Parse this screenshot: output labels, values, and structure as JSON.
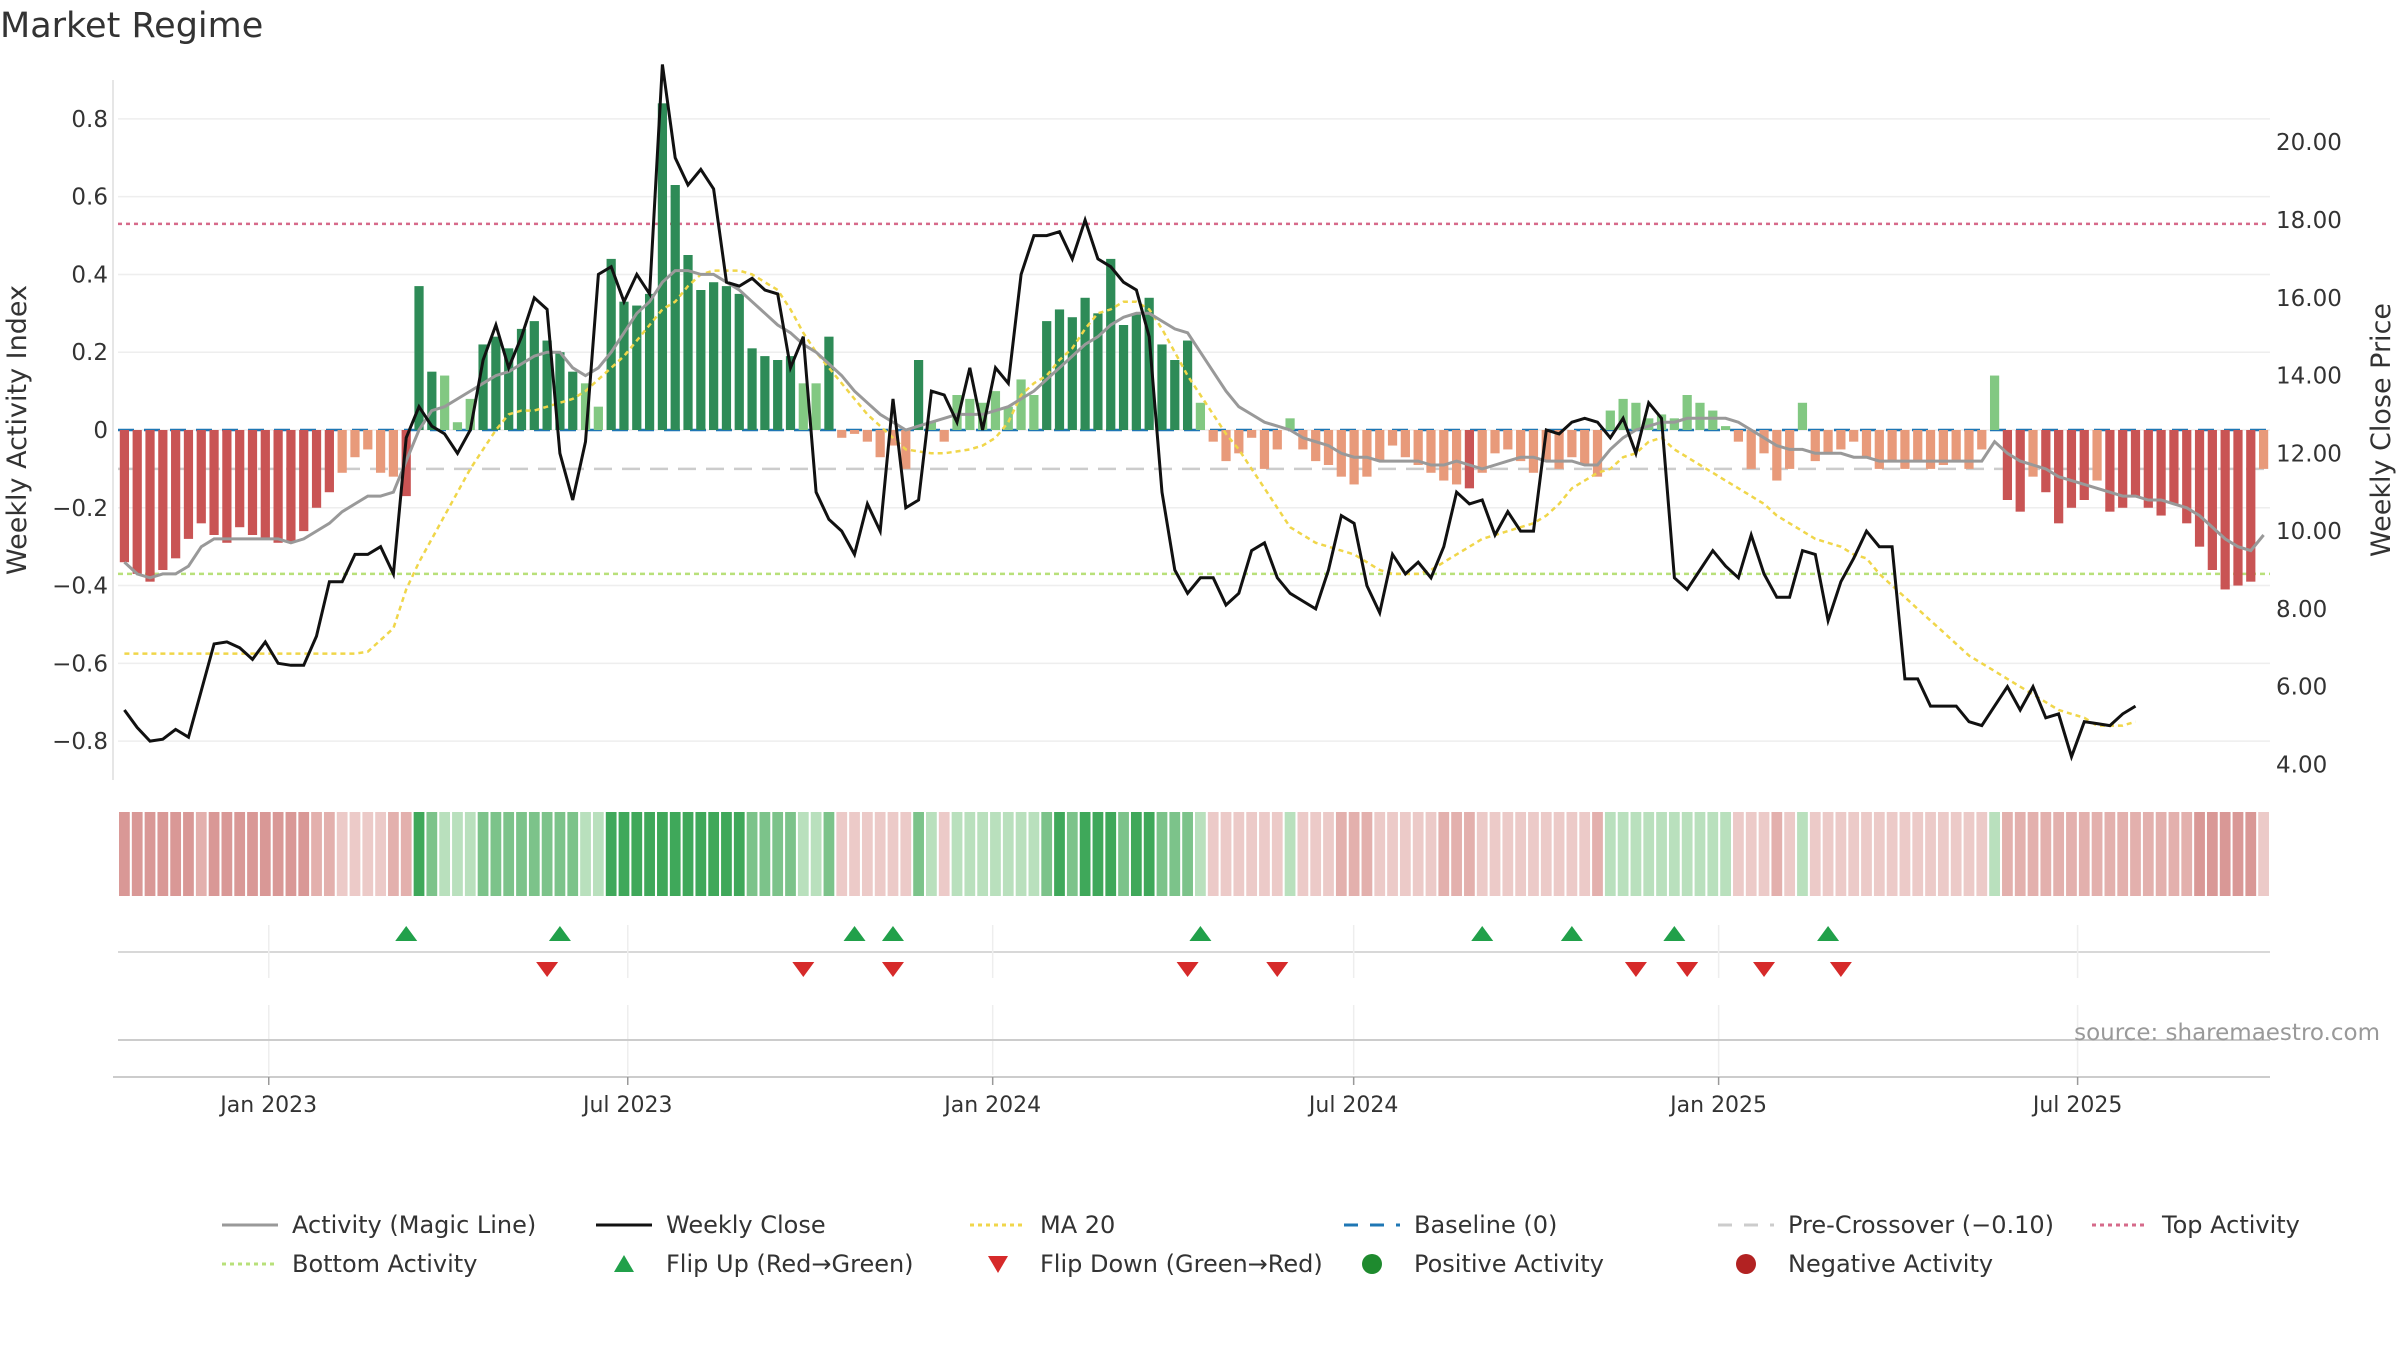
{
  "title": "Market Regime",
  "source": "source: sharemaestro.com",
  "colors": {
    "activity_line": "#999999",
    "close_line": "#111111",
    "ma20": "#f0d64a",
    "baseline": "#1f77b4",
    "pre_crossover": "#cccccc",
    "top_activity": "#d66a8a",
    "bottom_activity": "#b8e07a",
    "flip_up": "#21a04a",
    "flip_down": "#d62a2a",
    "positive": "#1e8a2e",
    "negative": "#b22222",
    "bar_pos_strong": "#2e8b57",
    "bar_pos_light": "#82c882",
    "bar_neg_strong": "#c95454",
    "bar_neg_light": "#e89a7a"
  },
  "chart_data": {
    "type": "bar+line",
    "ylabel_left": "Weekly Activity Index",
    "ylabel_right": "Weekly Close Price",
    "left_ticks": [
      "0.8",
      "0.6",
      "0.4",
      "0.2",
      "0",
      "−0.2",
      "−0.4",
      "−0.6",
      "−0.8"
    ],
    "right_ticks": [
      "20.00",
      "18.00",
      "16.00",
      "14.00",
      "12.00",
      "10.00",
      "8.00",
      "6.00",
      "4.00"
    ],
    "x_ticks": [
      "Jan 2023",
      "Jul 2023",
      "Jan 2024",
      "Jul 2024",
      "Jan 2025",
      "Jul 2025"
    ],
    "ylim_left": [
      -0.9,
      0.9
    ],
    "ylim_right": [
      3.6,
      21.6
    ],
    "x_range": [
      "2022-10-17",
      "2025-10-06"
    ],
    "top_activity": 0.53,
    "bottom_activity": -0.37,
    "pre_crossover": -0.1,
    "baseline": 0,
    "weekly_activity_index": [
      -0.34,
      -0.37,
      -0.39,
      -0.36,
      -0.33,
      -0.28,
      -0.24,
      -0.27,
      -0.29,
      -0.25,
      -0.27,
      -0.28,
      -0.29,
      -0.29,
      -0.26,
      -0.2,
      -0.16,
      -0.11,
      -0.07,
      -0.05,
      -0.11,
      -0.12,
      -0.17,
      0.37,
      0.15,
      0.14,
      0.02,
      0.08,
      0.22,
      0.24,
      0.21,
      0.26,
      0.28,
      0.23,
      0.2,
      0.15,
      0.12,
      0.06,
      0.44,
      0.33,
      0.32,
      0.35,
      0.84,
      0.63,
      0.45,
      0.36,
      0.38,
      0.37,
      0.35,
      0.21,
      0.19,
      0.18,
      0.19,
      0.12,
      0.12,
      0.24,
      -0.02,
      -0.01,
      -0.03,
      -0.07,
      -0.04,
      -0.1,
      0.18,
      0.02,
      -0.03,
      0.09,
      0.08,
      0.07,
      0.1,
      0.06,
      0.13,
      0.09,
      0.28,
      0.31,
      0.29,
      0.34,
      0.3,
      0.44,
      0.27,
      0.3,
      0.34,
      0.22,
      0.18,
      0.23,
      0.07,
      -0.03,
      -0.08,
      -0.06,
      -0.02,
      -0.1,
      -0.05,
      0.03,
      -0.05,
      -0.08,
      -0.09,
      -0.12,
      -0.14,
      -0.12,
      -0.08,
      -0.04,
      -0.07,
      -0.09,
      -0.11,
      -0.13,
      -0.14,
      -0.15,
      -0.11,
      -0.06,
      -0.05,
      -0.08,
      -0.11,
      -0.08,
      -0.1,
      -0.07,
      -0.09,
      -0.12,
      0.05,
      0.08,
      0.07,
      0.03,
      0.04,
      0.03,
      0.09,
      0.07,
      0.05,
      0.01,
      -0.03,
      -0.1,
      -0.06,
      -0.13,
      -0.1,
      0.07,
      -0.08,
      -0.06,
      -0.05,
      -0.03,
      -0.07,
      -0.1,
      -0.08,
      -0.1,
      -0.08,
      -0.1,
      -0.09,
      -0.08,
      -0.1,
      -0.05,
      0.14,
      -0.18,
      -0.21,
      -0.12,
      -0.16,
      -0.24,
      -0.2,
      -0.18,
      -0.13,
      -0.21,
      -0.2,
      -0.17,
      -0.2,
      -0.22,
      -0.19,
      -0.24,
      -0.3,
      -0.36,
      -0.41,
      -0.4,
      -0.39,
      -0.1
    ],
    "activity_magic_line": [
      -0.34,
      -0.37,
      -0.38,
      -0.37,
      -0.37,
      -0.35,
      -0.3,
      -0.28,
      -0.28,
      -0.28,
      -0.28,
      -0.28,
      -0.28,
      -0.29,
      -0.28,
      -0.26,
      -0.24,
      -0.21,
      -0.19,
      -0.17,
      -0.17,
      -0.16,
      -0.08,
      0.0,
      0.05,
      0.06,
      0.08,
      0.1,
      0.12,
      0.14,
      0.15,
      0.17,
      0.19,
      0.2,
      0.2,
      0.16,
      0.14,
      0.16,
      0.2,
      0.25,
      0.3,
      0.33,
      0.38,
      0.41,
      0.41,
      0.4,
      0.4,
      0.38,
      0.36,
      0.33,
      0.3,
      0.27,
      0.25,
      0.22,
      0.2,
      0.17,
      0.14,
      0.1,
      0.07,
      0.04,
      0.02,
      0.0,
      0.01,
      0.02,
      0.03,
      0.04,
      0.04,
      0.04,
      0.05,
      0.06,
      0.08,
      0.1,
      0.13,
      0.16,
      0.19,
      0.22,
      0.24,
      0.27,
      0.29,
      0.3,
      0.3,
      0.28,
      0.26,
      0.25,
      0.2,
      0.15,
      0.1,
      0.06,
      0.04,
      0.02,
      0.01,
      0.0,
      -0.02,
      -0.03,
      -0.04,
      -0.06,
      -0.07,
      -0.07,
      -0.08,
      -0.08,
      -0.08,
      -0.08,
      -0.09,
      -0.09,
      -0.08,
      -0.09,
      -0.1,
      -0.09,
      -0.08,
      -0.07,
      -0.07,
      -0.08,
      -0.08,
      -0.08,
      -0.09,
      -0.09,
      -0.05,
      -0.02,
      0.0,
      0.01,
      0.02,
      0.02,
      0.03,
      0.03,
      0.03,
      0.03,
      0.02,
      0.0,
      -0.02,
      -0.04,
      -0.05,
      -0.05,
      -0.06,
      -0.06,
      -0.06,
      -0.07,
      -0.07,
      -0.08,
      -0.08,
      -0.08,
      -0.08,
      -0.08,
      -0.08,
      -0.08,
      -0.08,
      -0.08,
      -0.03,
      -0.06,
      -0.08,
      -0.09,
      -0.1,
      -0.12,
      -0.13,
      -0.14,
      -0.15,
      -0.16,
      -0.17,
      -0.17,
      -0.18,
      -0.18,
      -0.19,
      -0.2,
      -0.22,
      -0.25,
      -0.28,
      -0.3,
      -0.31,
      -0.27
    ],
    "weekly_close": [
      5.4,
      4.95,
      4.6,
      4.65,
      4.9,
      4.7,
      5.9,
      7.1,
      7.15,
      7.0,
      6.7,
      7.15,
      6.6,
      6.55,
      6.55,
      7.3,
      8.7,
      8.7,
      9.4,
      9.4,
      9.6,
      8.9,
      12.4,
      13.2,
      12.7,
      12.5,
      12.0,
      12.6,
      14.4,
      15.3,
      14.2,
      15.0,
      16.0,
      15.7,
      12.0,
      10.8,
      12.3,
      16.6,
      16.8,
      15.9,
      16.6,
      16.1,
      22.0,
      19.6,
      18.9,
      19.3,
      18.8,
      16.4,
      16.3,
      16.5,
      16.2,
      16.1,
      14.2,
      15.0,
      11.0,
      10.3,
      10.0,
      9.4,
      10.7,
      10.0,
      13.4,
      10.6,
      10.8,
      13.6,
      13.5,
      12.8,
      14.2,
      12.6,
      14.2,
      13.8,
      16.6,
      17.6,
      17.6,
      17.7,
      17.0,
      18.0,
      17.0,
      16.8,
      16.4,
      16.2,
      15.0,
      11.0,
      9.0,
      8.4,
      8.8,
      8.8,
      8.1,
      8.4,
      9.5,
      9.7,
      8.8,
      8.4,
      8.2,
      8.0,
      9.0,
      10.4,
      10.2,
      8.6,
      7.9,
      9.4,
      8.9,
      9.2,
      8.8,
      9.6,
      11.0,
      10.7,
      10.8,
      9.9,
      10.5,
      10.0,
      10.0,
      12.6,
      12.5,
      12.8,
      12.9,
      12.8,
      12.4,
      12.9,
      12.0,
      13.3,
      12.9,
      8.8,
      8.5,
      9.0,
      9.5,
      9.1,
      8.8,
      9.9,
      8.9,
      8.3,
      8.3,
      9.5,
      9.4,
      7.7,
      8.7,
      9.3,
      10.0,
      9.6,
      9.6,
      6.2,
      6.2,
      5.5,
      5.5,
      5.5,
      5.1,
      5.0,
      5.5,
      6.0,
      5.4,
      6.0,
      5.2,
      5.3,
      4.2,
      5.1,
      5.05,
      5.0,
      5.3,
      5.5
    ],
    "ma20": [
      6.85,
      6.85,
      6.85,
      6.85,
      6.85,
      6.85,
      6.85,
      6.85,
      6.85,
      6.85,
      6.85,
      6.85,
      6.85,
      6.85,
      6.85,
      6.85,
      6.85,
      6.85,
      6.85,
      6.9,
      7.2,
      7.5,
      8.5,
      9.2,
      9.8,
      10.4,
      11.0,
      11.6,
      12.1,
      12.6,
      13.0,
      13.1,
      13.1,
      13.2,
      13.3,
      13.4,
      13.6,
      13.9,
      14.2,
      14.5,
      14.9,
      15.3,
      15.7,
      15.9,
      16.3,
      16.6,
      16.7,
      16.7,
      16.7,
      16.6,
      16.4,
      16.2,
      15.7,
      15.1,
      14.6,
      14.2,
      13.8,
      13.4,
      13.0,
      12.7,
      12.4,
      12.1,
      12.05,
      12.0,
      12.0,
      12.05,
      12.1,
      12.2,
      12.4,
      12.8,
      13.5,
      13.8,
      14.0,
      14.4,
      14.7,
      15.2,
      15.6,
      15.7,
      15.9,
      15.9,
      15.7,
      15.2,
      14.6,
      14.0,
      13.5,
      13.0,
      12.5,
      12.1,
      11.6,
      11.1,
      10.6,
      10.1,
      9.9,
      9.7,
      9.6,
      9.5,
      9.4,
      9.2,
      9.0,
      8.9,
      8.9,
      8.9,
      9.0,
      9.2,
      9.4,
      9.6,
      9.8,
      9.9,
      10.0,
      10.1,
      10.2,
      10.4,
      10.7,
      11.1,
      11.3,
      11.5,
      11.6,
      11.9,
      12.0,
      12.3,
      12.4,
      12.1,
      11.9,
      11.7,
      11.5,
      11.3,
      11.1,
      10.9,
      10.7,
      10.4,
      10.2,
      10.0,
      9.8,
      9.7,
      9.6,
      9.4,
      9.3,
      8.9,
      8.6,
      8.3,
      8.0,
      7.7,
      7.4,
      7.1,
      6.8,
      6.6,
      6.4,
      6.2,
      6.0,
      5.8,
      5.6,
      5.4,
      5.3,
      5.2,
      5.0,
      5.0,
      5.0,
      5.1
    ],
    "flip_up_weeks": [
      22,
      34,
      57,
      60,
      84,
      106,
      113,
      121,
      133
    ],
    "flip_down_weeks": [
      33,
      53,
      60,
      83,
      90,
      118,
      122,
      128,
      134
    ],
    "regime_strip": "activity-coloured weekly band"
  },
  "legend": [
    {
      "label": "Activity (Magic Line)",
      "kind": "line",
      "color_key": "activity_line"
    },
    {
      "label": "Weekly Close",
      "kind": "line",
      "color_key": "close_line"
    },
    {
      "label": "MA 20",
      "kind": "dotted",
      "color_key": "ma20"
    },
    {
      "label": "Baseline (0)",
      "kind": "dashed",
      "color_key": "baseline"
    },
    {
      "label": "Pre-Crossover (−0.10)",
      "kind": "dashed",
      "color_key": "pre_crossover"
    },
    {
      "label": "Top Activity",
      "kind": "dotted",
      "color_key": "top_activity"
    },
    {
      "label": "Bottom Activity",
      "kind": "dotted",
      "color_key": "bottom_activity"
    },
    {
      "label": "Flip Up (Red→Green)",
      "kind": "tri-up",
      "color_key": "flip_up"
    },
    {
      "label": "Flip Down (Green→Red)",
      "kind": "tri-down",
      "color_key": "flip_down"
    },
    {
      "label": "Positive Activity",
      "kind": "dot",
      "color_key": "positive"
    },
    {
      "label": "Negative Activity",
      "kind": "dot",
      "color_key": "negative"
    }
  ]
}
